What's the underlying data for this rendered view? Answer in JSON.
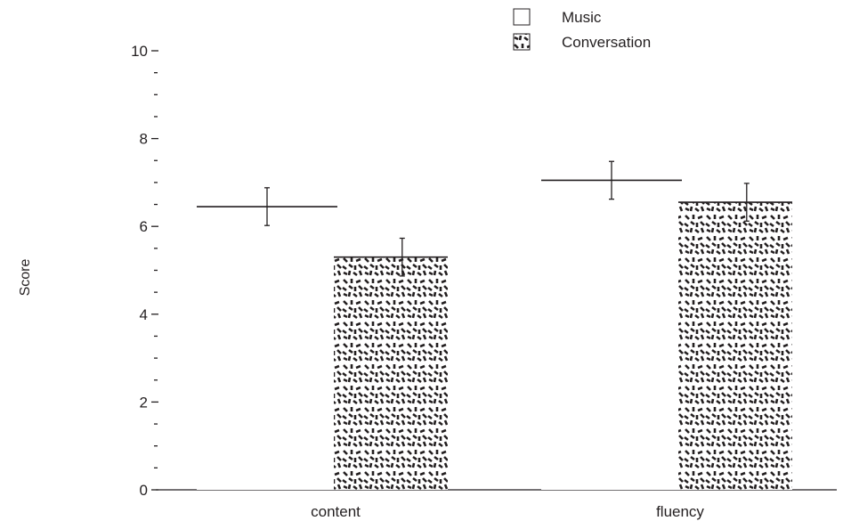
{
  "chart_data": {
    "type": "bar",
    "categories": [
      "content",
      "fluency"
    ],
    "ylabel": "Score",
    "xlabel": "",
    "ylim": [
      0,
      10
    ],
    "yticks": [
      0,
      2,
      4,
      6,
      8,
      10
    ],
    "minor_tick_step": 0.5,
    "error_bars": true,
    "legend_position": "top-right",
    "grid": false,
    "series": [
      {
        "name": "Music",
        "values": [
          6.45,
          7.05
        ],
        "error": [
          0.43,
          0.43
        ],
        "fill": "#ffffff",
        "pattern": "none"
      },
      {
        "name": "Conversation",
        "values": [
          5.3,
          6.55
        ],
        "error": [
          0.43,
          0.43
        ],
        "fill": "#ffffff",
        "pattern": "dashes"
      }
    ],
    "colors": {
      "ink": "#231f20",
      "background": "#ffffff"
    }
  }
}
